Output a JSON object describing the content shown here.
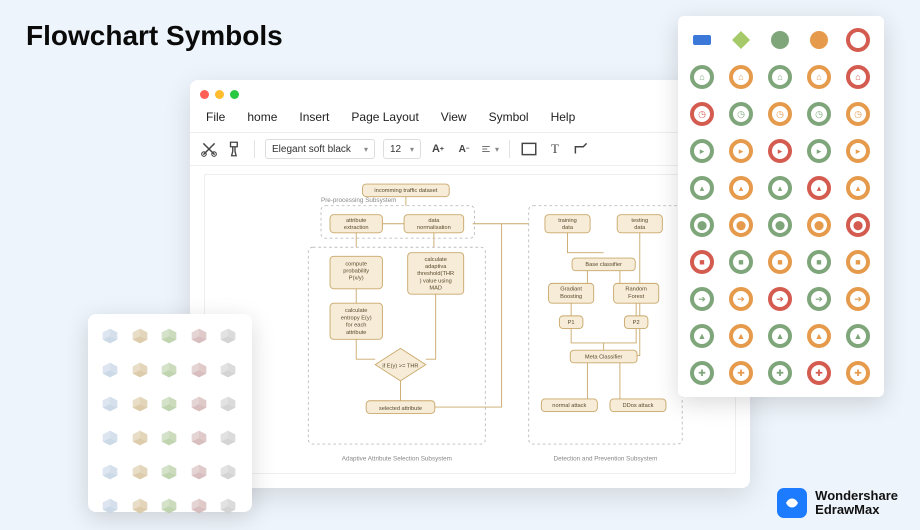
{
  "page_title": "Flowchart Symbols",
  "brand": {
    "line1": "Wondershare",
    "line2": "EdrawMax",
    "icon_bg": "#1d7bff"
  },
  "window": {
    "traffic_lights": [
      "#ff5f57",
      "#febc2e",
      "#28c840"
    ],
    "menu": [
      "File",
      "home",
      "Insert",
      "Page Layout",
      "View",
      "Symbol",
      "Help"
    ],
    "toolbar": {
      "font_select": "Elegant soft black",
      "size_select": "12"
    }
  },
  "flowchart": {
    "colors": {
      "node_fill": "#f6ecd8",
      "node_stroke": "#c9a86a",
      "dash": "#bdbdbd",
      "text": "#5a4a2c",
      "caption": "#888888"
    },
    "captions": {
      "top_group": "Pre-processing Subsystem",
      "left_bottom": "Adaptive Attribute Selection Subsystem",
      "right_bottom": "Detection and Prevention Subsystem"
    },
    "nodes": {
      "n1": "incomming traffic dataset",
      "n2a": "attribute extraction",
      "n2b": "data normalisation",
      "n3a": [
        "compute",
        "probability",
        "P(x/y)"
      ],
      "n3b": [
        "calculate",
        "adaptiva",
        "threshold(THR",
        ") value using",
        "MAD"
      ],
      "n4": [
        "calculate",
        "entropy E(y)",
        "for each",
        "attribute"
      ],
      "n5": "if E(y) >= THR",
      "n6": "selected attribute",
      "r1a": "training data",
      "r1b": "testing data",
      "r2": "Base classifier",
      "r3a": "Gradiant Boosting",
      "r3b": "Random Forest",
      "r4a": "P1",
      "r4b": "P2",
      "r5": "Meta Classifier",
      "r6a": "normal attack",
      "r6b": "DDos attack"
    }
  },
  "palette": {
    "row0_shapes": [
      {
        "t": "rrect",
        "c": "#3b78d8"
      },
      {
        "t": "diam",
        "c": "#a6c96a"
      },
      {
        "t": "circ",
        "c": "#7ea67a"
      },
      {
        "t": "circ",
        "c": "#e59a4c"
      },
      {
        "t": "ring",
        "c": "#d45b4f"
      }
    ],
    "ring_rows": [
      [
        "#7ea67a",
        "#e59a4c",
        "#7ea67a",
        "#e59a4c",
        "#d45b4f"
      ],
      [
        "#d45b4f",
        "#7ea67a",
        "#e59a4c",
        "#7ea67a",
        "#e59a4c"
      ],
      [
        "#7ea67a",
        "#e59a4c",
        "#d45b4f",
        "#7ea67a",
        "#e59a4c"
      ],
      [
        "#7ea67a",
        "#e59a4c",
        "#7ea67a",
        "#d45b4f",
        "#e59a4c"
      ],
      [
        "#7ea67a",
        "#e59a4c",
        "#7ea67a",
        "#e59a4c",
        "#d45b4f"
      ],
      [
        "#d45b4f",
        "#7ea67a",
        "#e59a4c",
        "#7ea67a",
        "#e59a4c"
      ],
      [
        "#7ea67a",
        "#e59a4c",
        "#d45b4f",
        "#7ea67a",
        "#e59a4c"
      ],
      [
        "#7ea67a",
        "#e59a4c",
        "#7ea67a",
        "#e59a4c",
        "#7ea67a"
      ],
      [
        "#7ea67a",
        "#e59a4c",
        "#7ea67a",
        "#d45b4f",
        "#e59a4c"
      ]
    ],
    "ring_glyphs_by_row": [
      "⌂",
      "◷",
      "▸",
      "▴",
      "⬤",
      "■",
      "➔",
      "▲",
      "✚"
    ]
  },
  "clipart_tints": [
    "#c7d6e6",
    "#d9c7a2",
    "#b9cfa6",
    "#d4b7b7",
    "#cfcfcf",
    "#c7d6e6",
    "#d9c7a2",
    "#b9cfa6",
    "#d4b7b7",
    "#cfcfcf",
    "#c7d6e6",
    "#d9c7a2",
    "#b9cfa6",
    "#d4b7b7",
    "#cfcfcf",
    "#c7d6e6",
    "#d9c7a2",
    "#b9cfa6",
    "#d4b7b7",
    "#cfcfcf",
    "#c7d6e6",
    "#d9c7a2",
    "#b9cfa6",
    "#d4b7b7",
    "#cfcfcf",
    "#c7d6e6",
    "#d9c7a2",
    "#b9cfa6",
    "#d4b7b7",
    "#cfcfcf"
  ]
}
